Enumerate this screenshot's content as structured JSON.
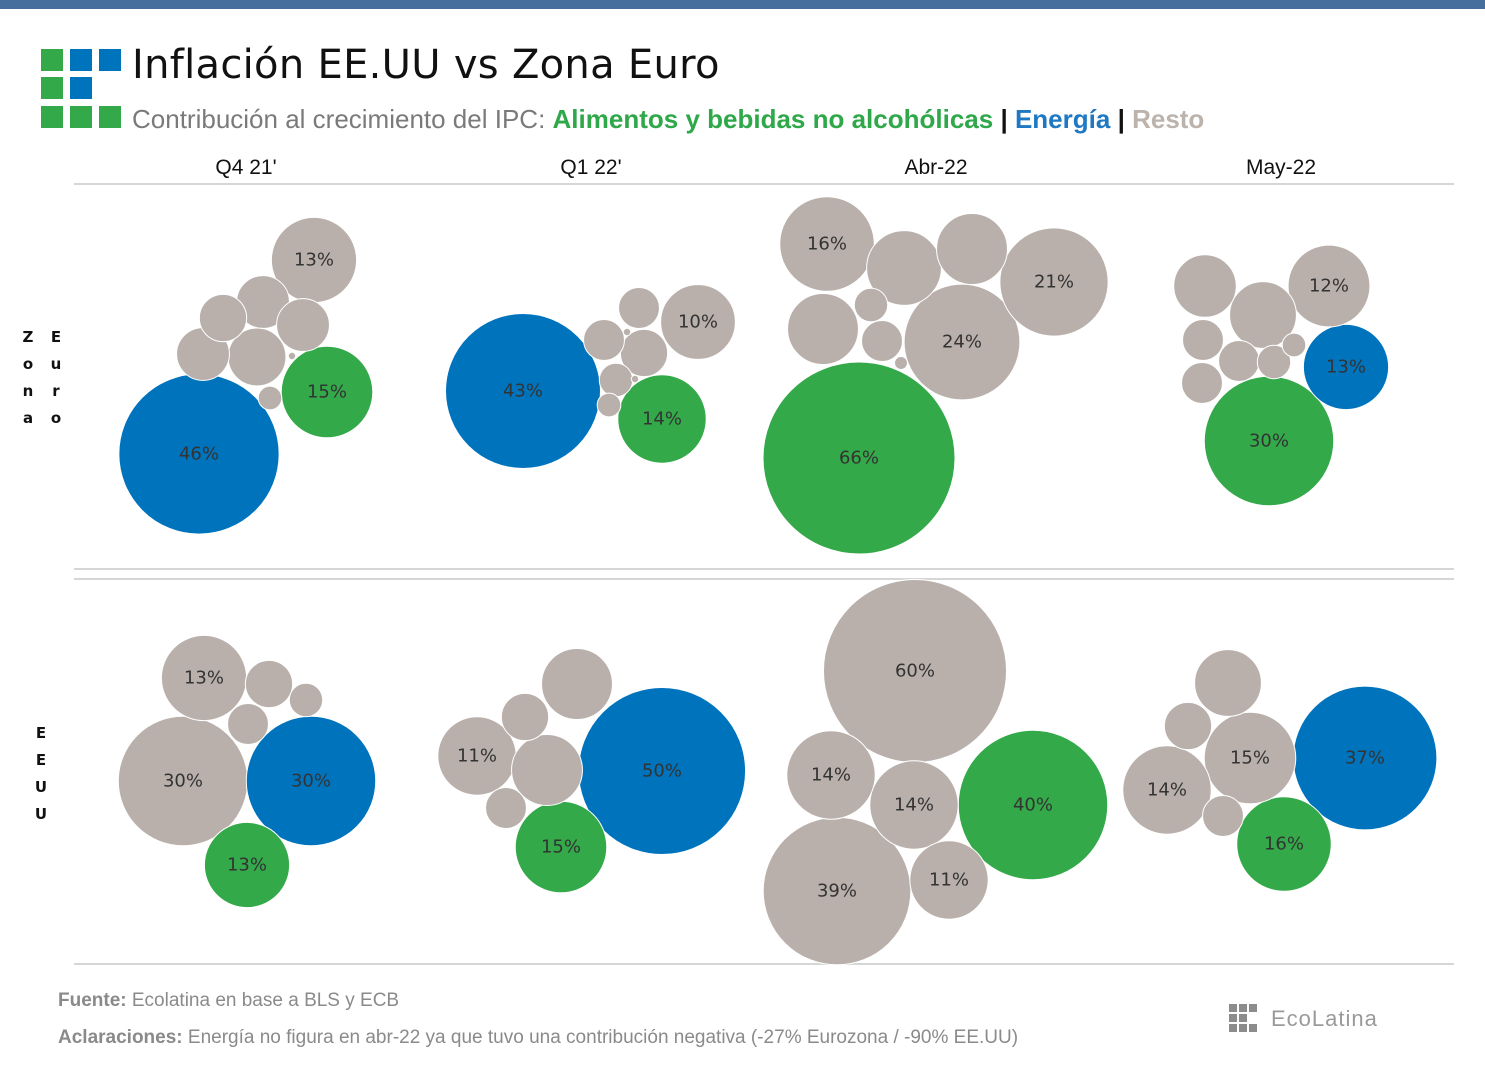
{
  "header": {
    "title": "Inflación EE.UU vs Zona Euro",
    "subtitle_prefix": "Contribución al crecimiento del IPC: ",
    "legend": {
      "food": "Alimentos y bebidas no alcohólicas",
      "separator": "|",
      "energy": "Energía",
      "rest": "Resto"
    }
  },
  "colors": {
    "food": "#33a949",
    "energy": "#0073bd",
    "rest": "#b9b0ab",
    "topbar": "#476f9d"
  },
  "footer": {
    "source_label": "Fuente:",
    "source_text": " Ecolatina en base a BLS y ECB",
    "note_label": "Aclaraciones:",
    "note_text": " Energía no figura en abr-22 ya que tuvo una contribución negativa (-27% Eurozona / -90% EE.UU)",
    "brand": "EcoLatina"
  },
  "chart_data": {
    "type": "bubble",
    "title": "Inflación EE.UU vs Zona Euro",
    "subtitle": "Contribución al crecimiento del IPC",
    "unit": "% contribution",
    "columns": [
      "Q4 21'",
      "Q1 22'",
      "Abr-22",
      "May-22"
    ],
    "rows": [
      {
        "name": "Zona Euro",
        "label_letters": [
          [
            "Z",
            "o",
            "n",
            "a"
          ],
          [
            "E",
            "u",
            "r",
            "o"
          ]
        ]
      },
      {
        "name": "EEUU",
        "label_letters": [
          [
            "E",
            "E",
            "U",
            "U"
          ]
        ]
      }
    ],
    "legend": [
      {
        "key": "food",
        "label": "Alimentos y bebidas no alcohólicas"
      },
      {
        "key": "energy",
        "label": "Energía"
      },
      {
        "key": "rest",
        "label": "Resto"
      }
    ],
    "panels": [
      {
        "row": "Zona Euro",
        "period": "Q4 21'",
        "bubbles": [
          {
            "cat": "energy",
            "value": 46,
            "label": "46%"
          },
          {
            "cat": "food",
            "value": 15,
            "label": "15%"
          },
          {
            "cat": "rest",
            "value": 13,
            "label": "13%"
          },
          {
            "cat": "rest",
            "value": 6
          },
          {
            "cat": "rest",
            "value": 5
          },
          {
            "cat": "rest",
            "value": 5
          },
          {
            "cat": "rest",
            "value": 5
          },
          {
            "cat": "rest",
            "value": 4
          },
          {
            "cat": "rest",
            "value": 1
          },
          {
            "cat": "rest",
            "value": 0.1
          }
        ]
      },
      {
        "row": "Zona Euro",
        "period": "Q1 22'",
        "bubbles": [
          {
            "cat": "energy",
            "value": 43,
            "label": "43%"
          },
          {
            "cat": "food",
            "value": 14,
            "label": "14%"
          },
          {
            "cat": "rest",
            "value": 10,
            "label": "10%"
          },
          {
            "cat": "rest",
            "value": 4
          },
          {
            "cat": "rest",
            "value": 3
          },
          {
            "cat": "rest",
            "value": 3
          },
          {
            "cat": "rest",
            "value": 2
          },
          {
            "cat": "rest",
            "value": 1
          },
          {
            "cat": "rest",
            "value": 0.1
          },
          {
            "cat": "rest",
            "value": 0.1
          }
        ]
      },
      {
        "row": "Zona Euro",
        "period": "Abr-22",
        "bubbles": [
          {
            "cat": "food",
            "value": 66,
            "label": "66%"
          },
          {
            "cat": "rest",
            "value": 24,
            "label": "24%"
          },
          {
            "cat": "rest",
            "value": 21,
            "label": "21%"
          },
          {
            "cat": "rest",
            "value": 16,
            "label": "16%"
          },
          {
            "cat": "rest",
            "value": 10
          },
          {
            "cat": "rest",
            "value": 9
          },
          {
            "cat": "rest",
            "value": 9
          },
          {
            "cat": "rest",
            "value": 3
          },
          {
            "cat": "rest",
            "value": 2
          },
          {
            "cat": "rest",
            "value": 0.3
          }
        ]
      },
      {
        "row": "Zona Euro",
        "period": "May-22",
        "bubbles": [
          {
            "cat": "food",
            "value": 30,
            "label": "30%"
          },
          {
            "cat": "energy",
            "value": 13,
            "label": "13%"
          },
          {
            "cat": "rest",
            "value": 12,
            "label": "12%"
          },
          {
            "cat": "rest",
            "value": 8
          },
          {
            "cat": "rest",
            "value": 7
          },
          {
            "cat": "rest",
            "value": 3
          },
          {
            "cat": "rest",
            "value": 3
          },
          {
            "cat": "rest",
            "value": 3
          },
          {
            "cat": "rest",
            "value": 2
          },
          {
            "cat": "rest",
            "value": 1
          }
        ]
      },
      {
        "row": "EEUU",
        "period": "Q4 21'",
        "bubbles": [
          {
            "cat": "rest",
            "value": 30,
            "label": "30%"
          },
          {
            "cat": "energy",
            "value": 30,
            "label": "30%"
          },
          {
            "cat": "food",
            "value": 13,
            "label": "13%"
          },
          {
            "cat": "rest",
            "value": 13,
            "label": "13%"
          },
          {
            "cat": "rest",
            "value": 4
          },
          {
            "cat": "rest",
            "value": 3
          },
          {
            "cat": "rest",
            "value": 2
          }
        ]
      },
      {
        "row": "EEUU",
        "period": "Q1 22'",
        "bubbles": [
          {
            "cat": "energy",
            "value": 50,
            "label": "50%"
          },
          {
            "cat": "food",
            "value": 15,
            "label": "15%"
          },
          {
            "cat": "rest",
            "value": 11,
            "label": "11%"
          },
          {
            "cat": "rest",
            "value": 9
          },
          {
            "cat": "rest",
            "value": 9
          },
          {
            "cat": "rest",
            "value": 4
          },
          {
            "cat": "rest",
            "value": 3
          }
        ]
      },
      {
        "row": "EEUU",
        "period": "Abr-22",
        "bubbles": [
          {
            "cat": "rest",
            "value": 60,
            "label": "60%"
          },
          {
            "cat": "food",
            "value": 40,
            "label": "40%"
          },
          {
            "cat": "rest",
            "value": 39,
            "label": "39%"
          },
          {
            "cat": "rest",
            "value": 14,
            "label": "14%"
          },
          {
            "cat": "rest",
            "value": 14,
            "label": "14%"
          },
          {
            "cat": "rest",
            "value": 11,
            "label": "11%"
          }
        ]
      },
      {
        "row": "EEUU",
        "period": "May-22",
        "bubbles": [
          {
            "cat": "energy",
            "value": 37,
            "label": "37%"
          },
          {
            "cat": "food",
            "value": 16,
            "label": "16%"
          },
          {
            "cat": "rest",
            "value": 15,
            "label": "15%"
          },
          {
            "cat": "rest",
            "value": 14,
            "label": "14%"
          },
          {
            "cat": "rest",
            "value": 8
          },
          {
            "cat": "rest",
            "value": 4
          },
          {
            "cat": "rest",
            "value": 3
          }
        ]
      }
    ]
  }
}
